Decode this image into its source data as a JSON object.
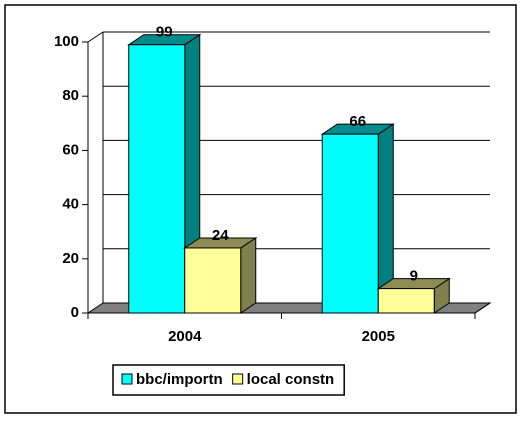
{
  "chart_data": {
    "type": "bar3d",
    "categories": [
      "2004",
      "2005"
    ],
    "series": [
      {
        "name": "bbc/importn",
        "color": "#00ffff",
        "values": [
          99,
          66
        ]
      },
      {
        "name": "local constn",
        "color": "#ffff99",
        "values": [
          24,
          9
        ]
      }
    ],
    "ylim": [
      0,
      100
    ],
    "yticks": [
      0,
      20,
      40,
      60,
      80,
      100
    ],
    "grid": true,
    "legend": "bottom"
  }
}
